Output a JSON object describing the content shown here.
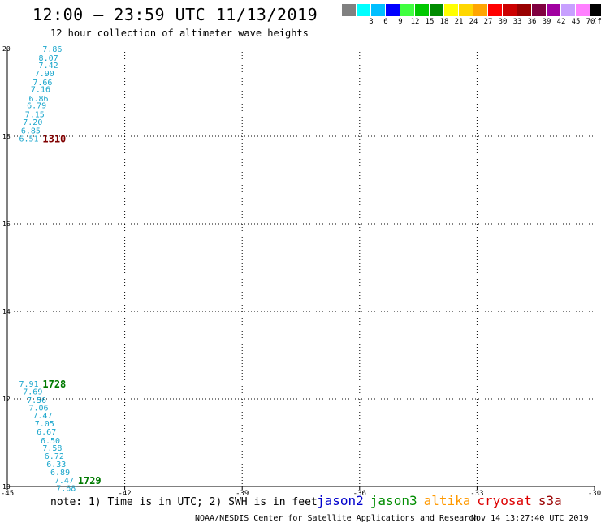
{
  "header": {
    "title": "12:00 – 23:59 UTC 11/13/2019",
    "subtitle": "12 hour collection of altimeter wave heights"
  },
  "color_scale": {
    "unit": "(ft)",
    "items": [
      {
        "label": "",
        "color": "#808080"
      },
      {
        "label": "3",
        "color": "#00ffff"
      },
      {
        "label": "6",
        "color": "#00bfff"
      },
      {
        "label": "9",
        "color": "#0000ff"
      },
      {
        "label": "12",
        "color": "#40ff40"
      },
      {
        "label": "15",
        "color": "#00c800"
      },
      {
        "label": "18",
        "color": "#008c00"
      },
      {
        "label": "21",
        "color": "#ffff00"
      },
      {
        "label": "24",
        "color": "#ffd700"
      },
      {
        "label": "27",
        "color": "#ffa500"
      },
      {
        "label": "30",
        "color": "#ff0000"
      },
      {
        "label": "33",
        "color": "#cc0000"
      },
      {
        "label": "36",
        "color": "#990000"
      },
      {
        "label": "39",
        "color": "#800040"
      },
      {
        "label": "42",
        "color": "#a000a0"
      },
      {
        "label": "45",
        "color": "#c8a0ff"
      },
      {
        "label": "70",
        "color": "#ff80ff"
      },
      {
        "label": "",
        "color": "#000000"
      }
    ]
  },
  "chart_data": {
    "type": "scatter",
    "grid": true,
    "xlim": [
      -45,
      -30
    ],
    "ylim": [
      10,
      20
    ],
    "x_ticks": [
      "-45",
      "-42",
      "-39",
      "-36",
      "-33",
      "-30"
    ],
    "y_ticks": [
      "10",
      "12",
      "14",
      "16",
      "18",
      "20"
    ],
    "points_color": "#1aa6cc",
    "points": [
      {
        "x": -44.1,
        "y": 20.0,
        "value": "7.86"
      },
      {
        "x": -44.2,
        "y": 19.8,
        "value": "8.07"
      },
      {
        "x": -44.2,
        "y": 19.63,
        "value": "7.42"
      },
      {
        "x": -44.3,
        "y": 19.44,
        "value": "7.90"
      },
      {
        "x": -44.35,
        "y": 19.24,
        "value": "7.66"
      },
      {
        "x": -44.4,
        "y": 19.08,
        "value": "7.16"
      },
      {
        "x": -44.45,
        "y": 18.87,
        "value": "6.86"
      },
      {
        "x": -44.5,
        "y": 18.71,
        "value": "6.79"
      },
      {
        "x": -44.55,
        "y": 18.51,
        "value": "7.15"
      },
      {
        "x": -44.6,
        "y": 18.33,
        "value": "7.20"
      },
      {
        "x": -44.65,
        "y": 18.14,
        "value": "6.85"
      },
      {
        "x": -44.7,
        "y": 17.95,
        "value": "6.51"
      },
      {
        "x": -44.7,
        "y": 12.35,
        "value": "7.91"
      },
      {
        "x": -44.6,
        "y": 12.18,
        "value": "7.69"
      },
      {
        "x": -44.5,
        "y": 11.98,
        "value": "7.56"
      },
      {
        "x": -44.45,
        "y": 11.81,
        "value": "7.06"
      },
      {
        "x": -44.35,
        "y": 11.63,
        "value": "7.47"
      },
      {
        "x": -44.3,
        "y": 11.44,
        "value": "7.05"
      },
      {
        "x": -44.25,
        "y": 11.26,
        "value": "6.67"
      },
      {
        "x": -44.15,
        "y": 11.06,
        "value": "6.50"
      },
      {
        "x": -44.1,
        "y": 10.89,
        "value": "7.58"
      },
      {
        "x": -44.05,
        "y": 10.7,
        "value": "6.72"
      },
      {
        "x": -44.0,
        "y": 10.52,
        "value": "6.33"
      },
      {
        "x": -43.9,
        "y": 10.33,
        "value": "6.89"
      },
      {
        "x": -43.8,
        "y": 10.15,
        "value": "7.47"
      },
      {
        "x": -43.75,
        "y": 9.97,
        "value": "7.68"
      }
    ],
    "time_labels": [
      {
        "x": -44.1,
        "y": 17.95,
        "text": "1310",
        "color": "#800000"
      },
      {
        "x": -44.1,
        "y": 12.35,
        "text": "1728",
        "color": "#007a00"
      },
      {
        "x": -43.2,
        "y": 10.15,
        "text": "1729",
        "color": "#007a00"
      }
    ]
  },
  "note": "note: 1) Time is in UTC; 2) SWH is in feet",
  "satellites": [
    {
      "name": "jason2",
      "color": "#0000cc"
    },
    {
      "name": "jason3",
      "color": "#008c00"
    },
    {
      "name": "altika",
      "color": "#ff9900"
    },
    {
      "name": "cryosat",
      "color": "#dd0000"
    },
    {
      "name": "s3a",
      "color": "#990000"
    }
  ],
  "footer": {
    "credit": "NOAA/NESDIS Center for Satellite Applications and Research",
    "timestamp": "Nov 14 13:27:40 UTC 2019"
  }
}
